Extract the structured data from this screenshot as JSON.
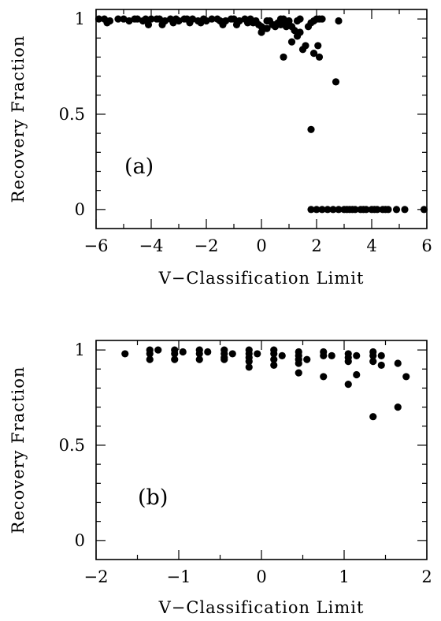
{
  "chart_data": [
    {
      "type": "scatter",
      "panel_label": "(a)",
      "xlabel": "V−Classification Limit",
      "ylabel": "Recovery Fraction",
      "xlim": [
        -6,
        6
      ],
      "ylim": [
        -0.1,
        1.05
      ],
      "xticks": [
        -6,
        -4,
        -2,
        0,
        2,
        4,
        6
      ],
      "xtick_labels": [
        "−6",
        "−4",
        "−2",
        "0",
        "2",
        "4",
        "6"
      ],
      "yticks": [
        0,
        0.5,
        1
      ],
      "ytick_labels": [
        "0",
        "0.5",
        "1"
      ],
      "grid": false,
      "series": [
        {
          "x": [
            -5.9,
            -5.7,
            -5.5,
            -5.2,
            -5.0,
            -4.8,
            -4.6,
            -4.5,
            -4.3,
            -4.2,
            -4.0,
            -3.8,
            -3.7,
            -3.5,
            -3.3,
            -3.1,
            -3.0,
            -2.8,
            -2.7,
            -2.5,
            -2.3,
            -2.1,
            -2.0,
            -1.8,
            -1.6,
            -1.5,
            -1.3,
            -1.1,
            -1.0,
            -0.8,
            -0.6,
            -0.4,
            -0.2,
            -3.6,
            -3.2,
            -2.6,
            -2.2,
            -1.4,
            -0.9,
            -4.1,
            -5.6,
            -0.5,
            -0.3,
            -0.1,
            0.0,
            0.1,
            0.2,
            0.3,
            0.4,
            0.5,
            0.6,
            0.7,
            0.8,
            0.9,
            1.0,
            1.1,
            1.2,
            1.3,
            1.4,
            0.0,
            0.2,
            0.5,
            0.9,
            1.3,
            1.1,
            0.7,
            0.8,
            1.5,
            1.6,
            1.4,
            1.7,
            1.8,
            1.9,
            2.0,
            2.1,
            2.2,
            1.9,
            2.05,
            2.1,
            2.8,
            2.7,
            1.8,
            1.8,
            2.0,
            2.2,
            2.4,
            2.6,
            2.8,
            3.0,
            3.2,
            3.4,
            3.6,
            3.8,
            4.0,
            4.2,
            4.4,
            4.6,
            4.9,
            5.2,
            5.9,
            3.1,
            3.3,
            3.7,
            4.1,
            4.5
          ],
          "y": [
            1.0,
            1.0,
            0.99,
            1.0,
            1.0,
            0.99,
            1.0,
            1.0,
            0.99,
            1.0,
            1.0,
            1.0,
            1.0,
            0.99,
            1.0,
            1.0,
            0.99,
            1.0,
            1.0,
            1.0,
            0.99,
            1.0,
            0.99,
            1.0,
            1.0,
            0.99,
            0.99,
            1.0,
            1.0,
            0.99,
            1.0,
            1.0,
            0.99,
            0.97,
            0.98,
            0.98,
            0.98,
            0.97,
            0.97,
            0.97,
            0.98,
            0.98,
            0.98,
            0.97,
            0.96,
            0.95,
            0.99,
            0.99,
            0.97,
            0.96,
            0.98,
            1.0,
            1.0,
            0.98,
            0.99,
            0.96,
            0.94,
            0.99,
            1.0,
            0.93,
            0.95,
            0.97,
            0.96,
            0.91,
            0.88,
            0.97,
            0.8,
            0.84,
            0.86,
            0.93,
            0.96,
            0.98,
            0.99,
            1.0,
            1.0,
            1.0,
            0.82,
            0.86,
            0.8,
            0.99,
            0.67,
            0.42,
            0.0,
            0.0,
            0.0,
            0.0,
            0.0,
            0.0,
            0.0,
            0.0,
            0.0,
            0.0,
            0.0,
            0.0,
            0.0,
            0.0,
            0.0,
            0.0,
            0.0,
            0.0,
            0.0,
            0.0,
            0.0,
            0.0,
            0.0
          ]
        }
      ]
    },
    {
      "type": "scatter",
      "panel_label": "(b)",
      "xlabel": "V−Classification Limit",
      "ylabel": "Recovery Fraction",
      "xlim": [
        -2,
        2
      ],
      "ylim": [
        -0.1,
        1.05
      ],
      "xticks": [
        -2,
        -1,
        0,
        1,
        2
      ],
      "xtick_labels": [
        "−2",
        "−1",
        "0",
        "1",
        "2"
      ],
      "yticks": [
        0,
        0.5,
        1
      ],
      "ytick_labels": [
        "0",
        "0.5",
        "1"
      ],
      "grid": false,
      "series": [
        {
          "x": [
            -1.65,
            -1.35,
            -1.35,
            -1.35,
            -1.25,
            -1.05,
            -1.05,
            -1.05,
            -0.95,
            -0.75,
            -0.75,
            -0.75,
            -0.65,
            -0.45,
            -0.45,
            -0.45,
            -0.45,
            -0.35,
            -0.15,
            -0.15,
            -0.15,
            -0.15,
            -0.15,
            -0.05,
            0.15,
            0.15,
            0.15,
            0.15,
            0.25,
            0.45,
            0.45,
            0.45,
            0.45,
            0.45,
            0.55,
            0.75,
            0.75,
            0.75,
            0.85,
            1.05,
            1.05,
            1.05,
            1.05,
            1.15,
            1.15,
            1.35,
            1.35,
            1.35,
            1.35,
            1.45,
            1.45,
            1.65,
            1.65,
            1.75
          ],
          "y": [
            0.98,
            1.0,
            0.98,
            0.95,
            1.0,
            1.0,
            0.98,
            0.95,
            0.99,
            1.0,
            0.98,
            0.95,
            0.99,
            1.0,
            0.98,
            0.96,
            0.95,
            0.98,
            1.0,
            0.98,
            0.96,
            0.94,
            0.91,
            0.98,
            1.0,
            0.98,
            0.95,
            0.92,
            0.97,
            0.99,
            0.97,
            0.95,
            0.93,
            0.88,
            0.95,
            0.99,
            0.97,
            0.86,
            0.97,
            0.98,
            0.96,
            0.94,
            0.82,
            0.97,
            0.87,
            0.99,
            0.97,
            0.94,
            0.65,
            0.97,
            0.92,
            0.93,
            0.7,
            0.86
          ]
        }
      ]
    }
  ]
}
